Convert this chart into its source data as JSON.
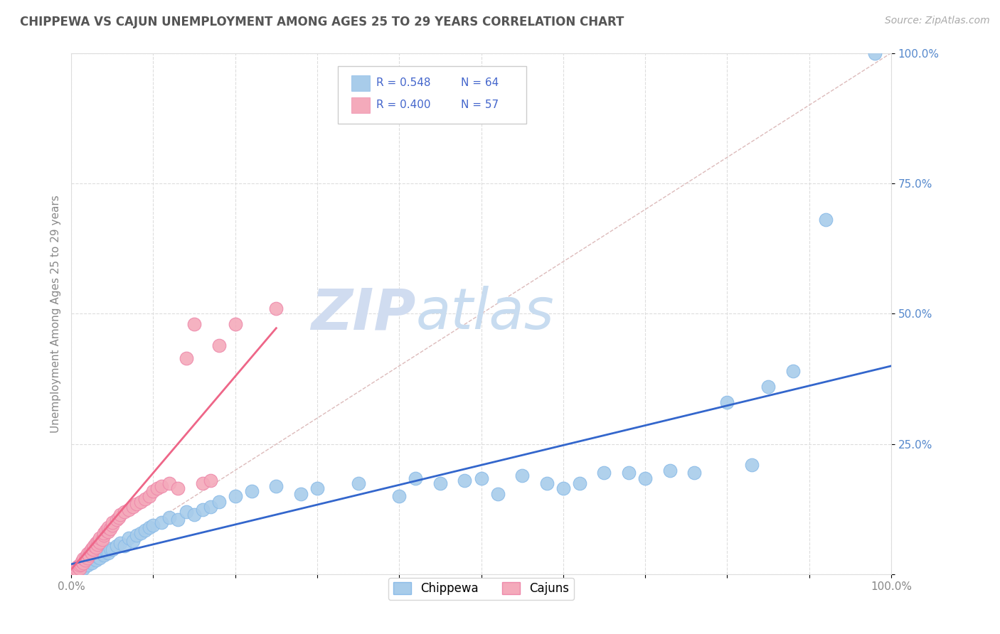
{
  "title": "CHIPPEWA VS CAJUN UNEMPLOYMENT AMONG AGES 25 TO 29 YEARS CORRELATION CHART",
  "source": "Source: ZipAtlas.com",
  "ylabel": "Unemployment Among Ages 25 to 29 years",
  "xlim": [
    0,
    1.0
  ],
  "ylim": [
    0,
    1.0
  ],
  "chippewa_color": "#A8CCEA",
  "cajun_color": "#F4AABB",
  "chippewa_line_color": "#3366CC",
  "cajun_line_color": "#EE6688",
  "diagonal_color": "#DDBBBB",
  "legend_r_chippewa": "R = 0.548",
  "legend_n_chippewa": "N = 64",
  "legend_r_cajun": "R = 0.400",
  "legend_n_cajun": "N = 57",
  "r_color": "#4466CC",
  "background_color": "#FFFFFF",
  "watermark_zip": "ZIP",
  "watermark_atlas": "atlas",
  "chippewa_x": [
    0.005,
    0.008,
    0.01,
    0.012,
    0.015,
    0.018,
    0.02,
    0.022,
    0.025,
    0.028,
    0.03,
    0.032,
    0.035,
    0.038,
    0.04,
    0.042,
    0.045,
    0.048,
    0.05,
    0.055,
    0.06,
    0.065,
    0.07,
    0.075,
    0.08,
    0.085,
    0.09,
    0.095,
    0.1,
    0.11,
    0.12,
    0.13,
    0.14,
    0.15,
    0.16,
    0.17,
    0.18,
    0.2,
    0.22,
    0.25,
    0.28,
    0.3,
    0.35,
    0.4,
    0.42,
    0.45,
    0.48,
    0.5,
    0.52,
    0.55,
    0.58,
    0.6,
    0.62,
    0.65,
    0.68,
    0.7,
    0.73,
    0.76,
    0.8,
    0.83,
    0.85,
    0.88,
    0.92,
    0.98
  ],
  "chippewa_y": [
    0.005,
    0.01,
    0.008,
    0.015,
    0.012,
    0.02,
    0.018,
    0.025,
    0.022,
    0.03,
    0.028,
    0.035,
    0.032,
    0.04,
    0.038,
    0.045,
    0.042,
    0.05,
    0.048,
    0.055,
    0.06,
    0.055,
    0.07,
    0.065,
    0.075,
    0.08,
    0.085,
    0.09,
    0.095,
    0.1,
    0.11,
    0.105,
    0.12,
    0.115,
    0.125,
    0.13,
    0.14,
    0.15,
    0.16,
    0.17,
    0.155,
    0.165,
    0.175,
    0.15,
    0.185,
    0.175,
    0.18,
    0.185,
    0.155,
    0.19,
    0.175,
    0.165,
    0.175,
    0.195,
    0.195,
    0.185,
    0.2,
    0.195,
    0.33,
    0.21,
    0.36,
    0.39,
    0.68,
    1.0
  ],
  "cajun_x": [
    0.003,
    0.005,
    0.007,
    0.008,
    0.01,
    0.01,
    0.012,
    0.013,
    0.015,
    0.015,
    0.017,
    0.018,
    0.02,
    0.02,
    0.022,
    0.023,
    0.025,
    0.025,
    0.027,
    0.028,
    0.03,
    0.03,
    0.032,
    0.033,
    0.035,
    0.035,
    0.038,
    0.04,
    0.04,
    0.042,
    0.045,
    0.045,
    0.048,
    0.05,
    0.05,
    0.055,
    0.058,
    0.06,
    0.065,
    0.07,
    0.075,
    0.08,
    0.085,
    0.09,
    0.095,
    0.1,
    0.105,
    0.11,
    0.12,
    0.13,
    0.14,
    0.15,
    0.16,
    0.17,
    0.18,
    0.2,
    0.25
  ],
  "cajun_y": [
    0.005,
    0.008,
    0.01,
    0.015,
    0.012,
    0.018,
    0.02,
    0.025,
    0.022,
    0.03,
    0.028,
    0.035,
    0.032,
    0.04,
    0.038,
    0.045,
    0.042,
    0.05,
    0.048,
    0.055,
    0.052,
    0.06,
    0.058,
    0.065,
    0.062,
    0.07,
    0.068,
    0.075,
    0.08,
    0.085,
    0.082,
    0.09,
    0.088,
    0.095,
    0.1,
    0.105,
    0.11,
    0.115,
    0.12,
    0.125,
    0.13,
    0.135,
    0.14,
    0.145,
    0.15,
    0.16,
    0.165,
    0.17,
    0.175,
    0.165,
    0.415,
    0.48,
    0.175,
    0.18,
    0.44,
    0.48,
    0.51
  ],
  "chippewa_slope": 0.38,
  "chippewa_intercept": 0.02,
  "cajun_slope": 1.85,
  "cajun_intercept": 0.01
}
